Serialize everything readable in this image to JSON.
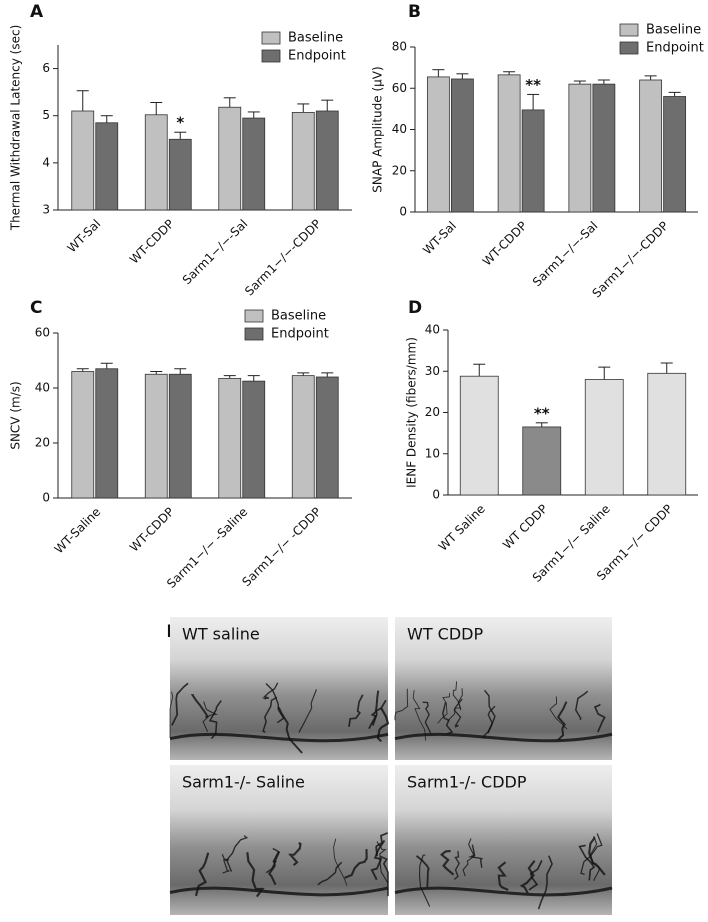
{
  "chart_data": [
    {
      "panel": "A",
      "type": "bar",
      "y_label": "Thermal Withdrawal Latency (sec)",
      "categories": [
        "WT-Sal",
        "WT-CDDP",
        "Sarm1−/−-Sal",
        "Sarm1−/−-CDDP"
      ],
      "series": [
        {
          "name": "Baseline",
          "color": "#c0c0c0",
          "values": [
            5.1,
            5.02,
            5.18,
            5.07
          ],
          "errors": [
            0.43,
            0.26,
            0.2,
            0.18
          ]
        },
        {
          "name": "Endpoint",
          "color": "#6e6e6e",
          "values": [
            4.85,
            4.5,
            4.95,
            5.1
          ],
          "errors": [
            0.15,
            0.15,
            0.13,
            0.23
          ]
        }
      ],
      "annotations": [
        {
          "text": "*",
          "category": "WT-CDDP",
          "series": "Endpoint"
        }
      ],
      "ylim": [
        3,
        6.5
      ],
      "yticks": [
        3,
        4,
        5,
        6
      ],
      "legend": "top-right"
    },
    {
      "panel": "B",
      "type": "bar",
      "y_label": "SNAP Amplitude (μV)",
      "categories": [
        "WT-Sal",
        "WT-CDDP",
        "Sarm1−/−-Sal",
        "Sarm1−/−-CDDP"
      ],
      "series": [
        {
          "name": "Baseline",
          "color": "#c0c0c0",
          "values": [
            65.5,
            66.5,
            62,
            64
          ],
          "errors": [
            3.5,
            1.5,
            1.5,
            2
          ]
        },
        {
          "name": "Endpoint",
          "color": "#6e6e6e",
          "values": [
            64.5,
            49.5,
            62,
            56
          ],
          "errors": [
            2.5,
            7.5,
            2,
            2
          ]
        }
      ],
      "annotations": [
        {
          "text": "**",
          "category": "WT-CDDP",
          "series": "Endpoint"
        }
      ],
      "ylim": [
        0,
        80
      ],
      "yticks": [
        0,
        20,
        40,
        60,
        80
      ],
      "legend": "top-right"
    },
    {
      "panel": "C",
      "type": "bar",
      "y_label": "SNCV (m/s)",
      "categories": [
        "WT-Saline",
        "WT-CDDP",
        "Sarm1−/− -Saline",
        "Sarm1−/− -CDDP"
      ],
      "series": [
        {
          "name": "Baseline",
          "color": "#c0c0c0",
          "values": [
            46,
            45,
            43.5,
            44.5
          ],
          "errors": [
            1,
            1,
            1,
            1
          ]
        },
        {
          "name": "Endpoint",
          "color": "#6e6e6e",
          "values": [
            47,
            45,
            42.5,
            44
          ],
          "errors": [
            2,
            2,
            2,
            1.5
          ]
        }
      ],
      "annotations": [],
      "ylim": [
        0,
        60
      ],
      "yticks": [
        0,
        20,
        40,
        60
      ],
      "legend": "top-right"
    },
    {
      "panel": "D",
      "type": "bar",
      "y_label": "IENF Density (fibers/mm)",
      "categories": [
        "WT Saline",
        "WT CDDP",
        "Sarm1−/− Saline",
        "Sarm1−/− CDDP"
      ],
      "series": [
        {
          "colors": [
            "#e0e0e0",
            "#8a8a8a",
            "#e0e0e0",
            "#e0e0e0"
          ],
          "values": [
            28.8,
            16.5,
            28,
            29.5
          ],
          "errors": [
            2.9,
            1,
            3,
            2.5
          ]
        }
      ],
      "annotations": [
        {
          "text": "**",
          "category": "WT CDDP",
          "series": 0
        }
      ],
      "ylim": [
        0,
        40
      ],
      "yticks": [
        0,
        10,
        20,
        30,
        40
      ]
    }
  ],
  "micrographs": {
    "panel": "E",
    "images": [
      {
        "caption": "WT saline"
      },
      {
        "caption": "WT CDDP"
      },
      {
        "caption": "Sarm1-/- Saline"
      },
      {
        "caption": "Sarm1-/- CDDP"
      }
    ]
  }
}
